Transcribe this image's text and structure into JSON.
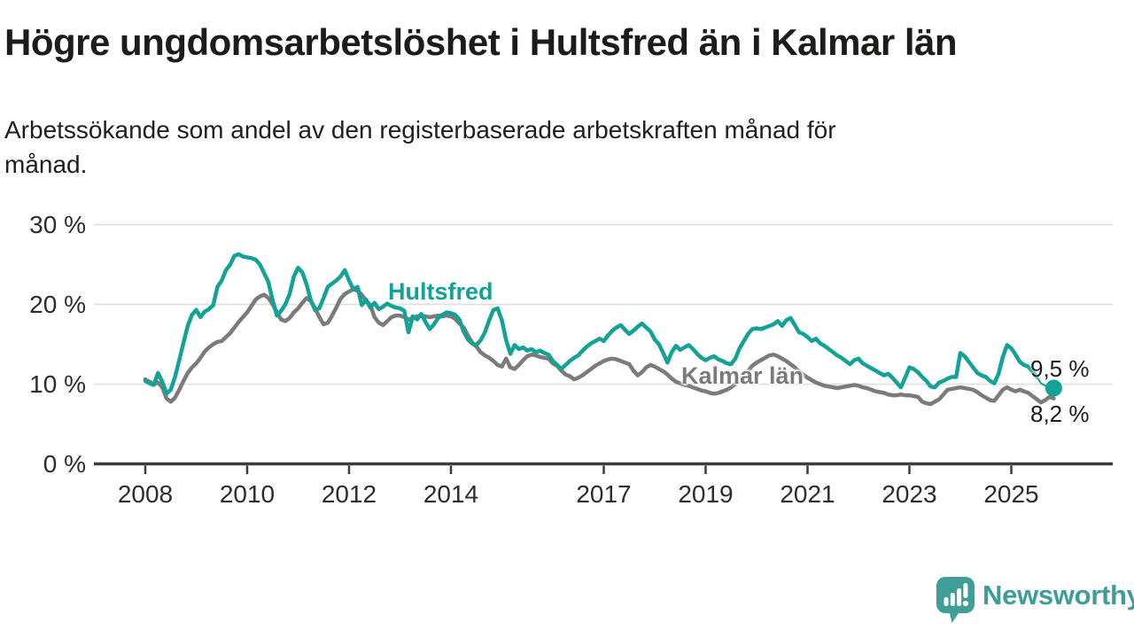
{
  "title": "Högre ungdomsarbetslöshet i Hultsfred än i Kalmar län",
  "subtitle": {
    "full": "Arbetssökande som andel av den registerbaserade arbetskraften månad för månad.",
    "line1": "Arbetssökande som andel av den registerbaserade arbetskraften månad för",
    "line2": "månad."
  },
  "branding": {
    "logo_text": "Newsworthy",
    "logo_icon": "speech-bubble-bar-chart-exclamation",
    "brand_color": "#3d9e99"
  },
  "chart_data": {
    "type": "line",
    "unit": "%",
    "x_unit": "month",
    "x_range": [
      "2008-01",
      "2025-11"
    ],
    "x_tick_years": [
      2008,
      2010,
      2012,
      2014,
      2017,
      2019,
      2021,
      2023,
      2025
    ],
    "x_tick_labels": [
      "2008",
      "2010",
      "2012",
      "2014",
      "2017",
      "2019",
      "2021",
      "2023",
      "2025"
    ],
    "y_ticks": [
      0,
      10,
      20,
      30
    ],
    "y_tick_labels": [
      "0 %",
      "10 %",
      "20 %",
      "30 %"
    ],
    "ylim": [
      0,
      32
    ],
    "grid": true,
    "legend": "inline-labels",
    "style": {
      "grid_color": "#dedede",
      "axis_color": "#3c3c3c",
      "tick_text_color": "#2d2d2d"
    },
    "series": [
      {
        "name": "Kalmar län",
        "color": "#7b7b7b",
        "line_width": 4.5,
        "end_dot": false,
        "values": [
          10.6,
          10.3,
          10.0,
          10.2,
          9.6,
          8.2,
          7.8,
          8.3,
          9.3,
          10.4,
          11.4,
          12.1,
          12.6,
          13.3,
          14.1,
          14.6,
          15.0,
          15.3,
          15.4,
          15.9,
          16.4,
          17.1,
          17.8,
          18.4,
          19.0,
          19.8,
          20.6,
          21.0,
          21.2,
          20.8,
          20.0,
          19.0,
          18.1,
          17.9,
          18.3,
          19.0,
          19.5,
          20.2,
          20.8,
          20.4,
          19.5,
          18.4,
          17.5,
          17.7,
          18.6,
          19.6,
          20.7,
          21.3,
          21.6,
          21.9,
          21.7,
          21.2,
          20.5,
          19.9,
          18.4,
          17.7,
          17.4,
          17.9,
          18.4,
          18.6,
          18.6,
          18.4,
          18.1,
          18.3,
          18.5,
          18.6,
          18.5,
          18.4,
          18.5,
          18.6,
          18.5,
          18.6,
          18.5,
          18.2,
          17.6,
          17.1,
          16.1,
          15.2,
          14.7,
          14.0,
          13.6,
          13.3,
          12.9,
          12.4,
          12.2,
          13.2,
          12.1,
          11.9,
          12.4,
          13.0,
          13.5,
          13.7,
          13.6,
          13.4,
          13.3,
          13.2,
          12.6,
          12.3,
          11.7,
          11.2,
          11.0,
          10.6,
          10.8,
          11.1,
          11.5,
          11.9,
          12.3,
          12.6,
          12.9,
          13.1,
          13.2,
          13.1,
          12.9,
          12.7,
          12.5,
          11.7,
          11.1,
          11.5,
          12.1,
          12.4,
          12.2,
          11.9,
          11.6,
          11.2,
          10.7,
          10.3,
          10.1,
          9.9,
          9.8,
          9.6,
          9.4,
          9.2,
          9.1,
          8.9,
          8.8,
          8.9,
          9.1,
          9.3,
          9.6,
          10.0,
          10.5,
          11.1,
          11.7,
          12.3,
          12.7,
          13.0,
          13.3,
          13.6,
          13.7,
          13.5,
          13.2,
          12.9,
          12.5,
          12.1,
          11.6,
          11.2,
          10.8,
          10.5,
          10.2,
          10.0,
          9.8,
          9.7,
          9.6,
          9.5,
          9.6,
          9.7,
          9.8,
          9.9,
          9.8,
          9.6,
          9.5,
          9.3,
          9.1,
          9.0,
          8.9,
          8.7,
          8.6,
          8.6,
          8.7,
          8.6,
          8.6,
          8.5,
          8.4,
          7.8,
          7.6,
          7.5,
          7.8,
          8.1,
          8.7,
          9.3,
          9.4,
          9.5,
          9.6,
          9.5,
          9.4,
          9.3,
          9.0,
          8.6,
          8.3,
          8.0,
          7.9,
          8.6,
          9.3,
          9.6,
          9.3,
          9.1,
          9.3,
          9.1,
          8.9,
          8.5,
          8.1,
          7.7,
          8.0,
          8.4,
          8.2
        ]
      },
      {
        "name": "Hultsfred",
        "color": "#12a296",
        "line_width": 4.5,
        "end_dot": true,
        "thin_tail_from_index": 210,
        "values": [
          10.4,
          10.1,
          9.9,
          11.4,
          10.3,
          8.8,
          9.3,
          10.9,
          13.0,
          15.2,
          17.3,
          18.7,
          19.3,
          18.4,
          19.1,
          19.4,
          19.9,
          22.2,
          23.0,
          24.3,
          25.0,
          26.1,
          26.3,
          26.0,
          25.9,
          25.8,
          25.6,
          25.0,
          23.9,
          22.8,
          20.5,
          18.6,
          19.2,
          20.0,
          21.3,
          23.5,
          24.6,
          24.0,
          22.5,
          20.5,
          19.3,
          19.5,
          20.8,
          22.2,
          22.6,
          23.0,
          23.5,
          24.3,
          23.0,
          21.9,
          22.2,
          19.9,
          20.6,
          19.6,
          20.2,
          19.4,
          19.7,
          20.1,
          19.8,
          19.6,
          19.5,
          19.2,
          16.5,
          18.5,
          18.1,
          18.8,
          17.8,
          16.9,
          17.5,
          18.3,
          18.7,
          19.0,
          18.9,
          18.7,
          18.1,
          16.6,
          15.6,
          15.1,
          14.9,
          15.5,
          16.5,
          18.0,
          19.3,
          19.5,
          18.0,
          15.5,
          13.8,
          14.9,
          14.4,
          14.6,
          14.2,
          14.4,
          14.0,
          14.2,
          13.9,
          13.7,
          12.9,
          12.4,
          11.9,
          12.4,
          12.9,
          13.3,
          13.6,
          14.2,
          14.7,
          15.1,
          15.4,
          15.7,
          15.4,
          16.1,
          16.7,
          17.1,
          17.4,
          16.8,
          16.3,
          16.7,
          17.2,
          17.6,
          17.1,
          16.6,
          15.6,
          15.0,
          13.9,
          12.7,
          14.0,
          14.8,
          14.3,
          14.6,
          14.9,
          14.4,
          13.8,
          13.3,
          13.0,
          13.3,
          13.5,
          13.1,
          12.9,
          12.6,
          12.5,
          13.2,
          14.5,
          15.4,
          16.3,
          16.9,
          17.0,
          16.9,
          17.1,
          17.3,
          17.5,
          17.9,
          17.3,
          18.0,
          18.3,
          17.4,
          16.5,
          16.3,
          15.9,
          15.4,
          15.7,
          15.1,
          14.8,
          14.4,
          14.0,
          13.6,
          13.3,
          12.9,
          12.5,
          13.0,
          13.2,
          12.6,
          12.3,
          12.0,
          11.7,
          11.4,
          11.1,
          11.3,
          10.8,
          10.2,
          9.6,
          10.8,
          12.1,
          11.9,
          11.5,
          10.9,
          10.4,
          9.7,
          9.6,
          10.2,
          10.4,
          10.7,
          10.9,
          10.9,
          13.9,
          13.5,
          12.8,
          12.1,
          11.4,
          11.1,
          10.9,
          10.4,
          10.1,
          11.3,
          13.4,
          14.9,
          14.5,
          13.7,
          12.8,
          12.4,
          12.2,
          11.6,
          10.9,
          10.1,
          9.8,
          9.6,
          9.5
        ]
      }
    ],
    "end_value_labels": {
      "hultsfred": "9,5 %",
      "kalmar": "8,2 %"
    }
  }
}
